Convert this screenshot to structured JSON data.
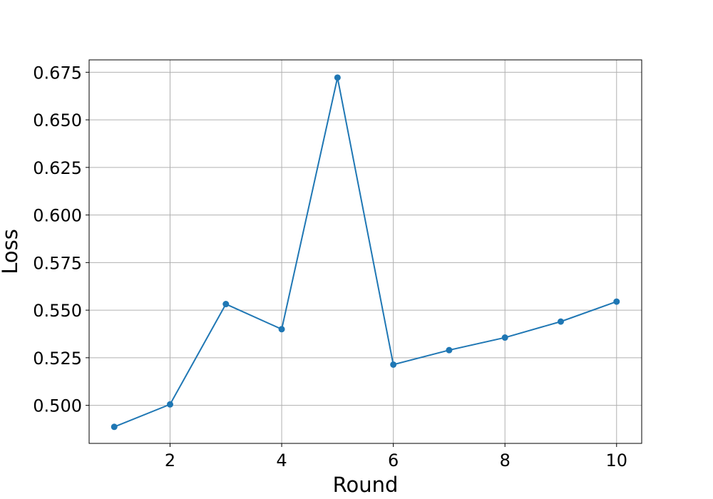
{
  "chart_data": {
    "type": "line",
    "title": "",
    "xlabel": "Round",
    "ylabel": "Loss",
    "x": [
      1,
      2,
      3,
      4,
      5,
      6,
      7,
      8,
      9,
      10
    ],
    "series": [
      {
        "values": [
          0.4887,
          0.5005,
          0.5532,
          0.54,
          0.6722,
          0.5214,
          0.529,
          0.5356,
          0.544,
          0.5545
        ],
        "color": "#1f77b4",
        "marker": "circle"
      }
    ],
    "xlim": [
      0.55,
      10.45
    ],
    "ylim": [
      0.48,
      0.6815
    ],
    "xticks": [
      2,
      4,
      6,
      8,
      10
    ],
    "xtick_labels": [
      "2",
      "4",
      "6",
      "8",
      "10"
    ],
    "yticks": [
      0.5,
      0.525,
      0.55,
      0.575,
      0.6,
      0.625,
      0.65,
      0.675
    ],
    "ytick_labels": [
      "0.500",
      "0.525",
      "0.550",
      "0.575",
      "0.600",
      "0.625",
      "0.650",
      "0.675"
    ],
    "grid": true,
    "legend": false
  }
}
